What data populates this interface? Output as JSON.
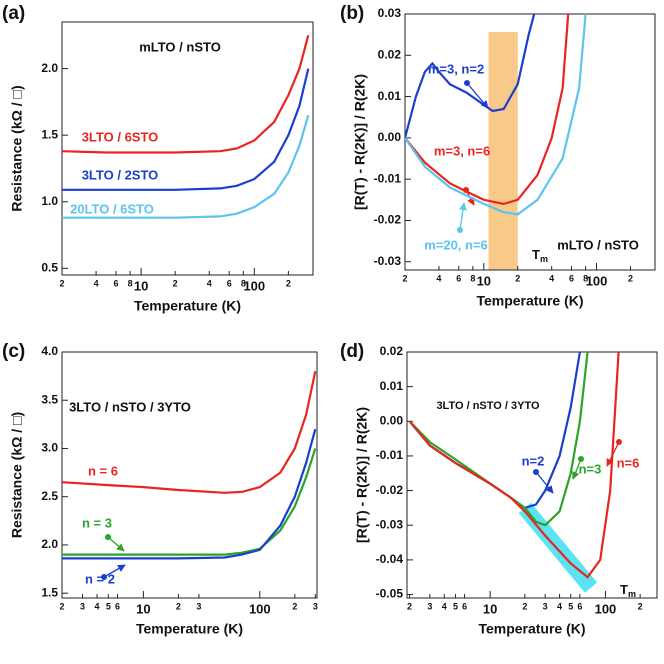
{
  "chart_data": [
    {
      "type": "line",
      "panel": "(a)",
      "annotation": "mLTO / nSTO",
      "x_label": "Temperature (K)",
      "y_label": "Resistance (kΩ / □)",
      "log_x": true,
      "xlim": [
        2,
        330
      ],
      "ylim": [
        0.45,
        2.35
      ],
      "xticks": [
        2,
        4,
        6,
        8,
        10,
        {
          "value": 20,
          "label": "2"
        },
        {
          "value": 40,
          "label": "4"
        },
        {
          "value": 60,
          "label": "6"
        },
        {
          "value": 80,
          "label": "8"
        },
        100,
        {
          "value": 200,
          "label": "2"
        }
      ],
      "yticks": [
        0.5,
        {
          "value": 1,
          "label": "1.0"
        },
        1.5,
        {
          "value": 2,
          "label": "2.0"
        }
      ],
      "series": [
        {
          "name": "3LTO / 6STO",
          "color": "#e8251f",
          "x": [
            2,
            5,
            10,
            20,
            50,
            70,
            100,
            150,
            200,
            250,
            300
          ],
          "values": [
            1.38,
            1.37,
            1.37,
            1.37,
            1.38,
            1.4,
            1.46,
            1.6,
            1.8,
            2.0,
            2.25
          ]
        },
        {
          "name": "3LTO / 2STO",
          "color": "#1a3fcf",
          "x": [
            2,
            5,
            10,
            20,
            50,
            70,
            100,
            150,
            200,
            250,
            300
          ],
          "values": [
            1.09,
            1.09,
            1.09,
            1.09,
            1.1,
            1.12,
            1.17,
            1.3,
            1.5,
            1.72,
            2.0
          ]
        },
        {
          "name": "20LTO / 6STO",
          "color": "#5bc4ef",
          "x": [
            2,
            5,
            10,
            20,
            50,
            70,
            100,
            150,
            200,
            250,
            300
          ],
          "values": [
            0.88,
            0.88,
            0.88,
            0.88,
            0.89,
            0.91,
            0.96,
            1.06,
            1.22,
            1.42,
            1.65
          ]
        }
      ]
    },
    {
      "type": "line",
      "panel": "(b)",
      "annotation": "mLTO / nSTO",
      "x_label": "Temperature (K)",
      "y_label": "[R(T) - R(2K)] / R(2K)",
      "log_x": true,
      "xlim": [
        2,
        330
      ],
      "ylim": [
        -0.032,
        0.03
      ],
      "xticks": [
        2,
        4,
        6,
        8,
        10,
        {
          "value": 20,
          "label": "2"
        },
        {
          "value": 40,
          "label": "4"
        },
        {
          "value": 60,
          "label": "6"
        },
        {
          "value": 80,
          "label": "8"
        },
        100,
        {
          "value": 200,
          "label": "2"
        }
      ],
      "yticks": [
        -0.03,
        -0.02,
        -0.01,
        {
          "value": 0,
          "label": "0.00"
        },
        0.01,
        0.02,
        0.03
      ],
      "band": {
        "x": [
          11,
          20
        ],
        "color": "#f9c98a",
        "label": "T",
        "label_sub": "m"
      },
      "series": [
        {
          "name": "m=3, n=2",
          "color": "#1a3fcf",
          "x": [
            2,
            2.5,
            3,
            3.5,
            4,
            5,
            7,
            10,
            12,
            15,
            20,
            25,
            28
          ],
          "values": [
            0,
            0.01,
            0.016,
            0.018,
            0.016,
            0.013,
            0.011,
            0.008,
            0.0065,
            0.007,
            0.013,
            0.025,
            0.03
          ]
        },
        {
          "name": "m=3, n=6",
          "color": "#e8251f",
          "x": [
            2,
            3,
            5,
            7,
            10,
            15,
            20,
            30,
            40,
            50,
            56
          ],
          "values": [
            0,
            -0.006,
            -0.011,
            -0.013,
            -0.015,
            -0.016,
            -0.015,
            -0.009,
            0.0,
            0.012,
            0.03
          ]
        },
        {
          "name": "m=20, n=6",
          "color": "#5bc4ef",
          "x": [
            2,
            3,
            5,
            10,
            15,
            20,
            30,
            50,
            70,
            80
          ],
          "values": [
            0,
            -0.007,
            -0.012,
            -0.016,
            -0.018,
            -0.0185,
            -0.015,
            -0.005,
            0.012,
            0.03
          ]
        }
      ]
    },
    {
      "type": "line",
      "panel": "(c)",
      "annotation": "3LTO / nSTO / 3YTO",
      "x_label": "Temperature (K)",
      "y_label": "Resistance (kΩ / □)",
      "log_x": true,
      "xlim": [
        2,
        310
      ],
      "ylim": [
        1.45,
        4.0
      ],
      "xticks": [
        2,
        3,
        4,
        5,
        6,
        10,
        {
          "value": 20,
          "label": "2"
        },
        {
          "value": 30,
          "label": "3"
        },
        100,
        {
          "value": 200,
          "label": "2"
        },
        {
          "value": 300,
          "label": "3"
        }
      ],
      "yticks": [
        1.5,
        {
          "value": 2,
          "label": "2.0"
        },
        2.5,
        {
          "value": 3,
          "label": "3.0"
        },
        3.5,
        {
          "value": 4,
          "label": "4.0"
        }
      ],
      "series": [
        {
          "name": "n = 6",
          "color": "#e8251f",
          "x": [
            2,
            5,
            10,
            20,
            50,
            70,
            100,
            150,
            200,
            250,
            300
          ],
          "values": [
            2.65,
            2.62,
            2.6,
            2.57,
            2.54,
            2.55,
            2.6,
            2.75,
            3.0,
            3.35,
            3.8
          ]
        },
        {
          "name": "n = 3",
          "color": "#2aa52a",
          "x": [
            2,
            5,
            10,
            20,
            50,
            70,
            100,
            150,
            200,
            250,
            300
          ],
          "values": [
            1.9,
            1.9,
            1.9,
            1.9,
            1.9,
            1.92,
            1.96,
            2.15,
            2.4,
            2.7,
            3.0
          ]
        },
        {
          "name": "n = 2",
          "color": "#1a3fcf",
          "x": [
            2,
            5,
            10,
            20,
            50,
            70,
            100,
            150,
            200,
            250,
            300
          ],
          "values": [
            1.86,
            1.86,
            1.86,
            1.86,
            1.87,
            1.9,
            1.95,
            2.2,
            2.5,
            2.85,
            3.2
          ]
        }
      ]
    },
    {
      "type": "line",
      "panel": "(d)",
      "annotation": "3LTO / nSTO / 3YTO",
      "x_label": "Temperature (K)",
      "y_label": "[R(T) - R(2K)] / R(2K)",
      "log_x": true,
      "xlim": [
        1.9,
        280
      ],
      "ylim": [
        -0.051,
        0.02
      ],
      "xticks": [
        2,
        3,
        4,
        5,
        6,
        10,
        {
          "value": 20,
          "label": "2"
        },
        {
          "value": 30,
          "label": "3"
        },
        {
          "value": 40,
          "label": "4"
        },
        {
          "value": 50,
          "label": "5"
        },
        {
          "value": 60,
          "label": "6"
        },
        100,
        {
          "value": 200,
          "label": "2"
        }
      ],
      "yticks": [
        -0.05,
        -0.04,
        -0.03,
        -0.02,
        -0.01,
        {
          "value": 0,
          "label": "0.00"
        },
        0.01,
        0.02
      ],
      "band": {
        "x": [
          20,
          75
        ],
        "y": [
          -0.025,
          -0.048
        ],
        "color": "#3ee0f0",
        "label": "T",
        "label_sub": "m"
      },
      "series": [
        {
          "name": "n=2",
          "color": "#1a3fcf",
          "x": [
            2,
            3,
            5,
            10,
            15,
            20,
            25,
            30,
            40,
            50,
            60
          ],
          "values": [
            0,
            -0.007,
            -0.012,
            -0.018,
            -0.022,
            -0.025,
            -0.024,
            -0.02,
            -0.01,
            0.004,
            0.02
          ]
        },
        {
          "name": "n=3",
          "color": "#2aa52a",
          "x": [
            2,
            3,
            5,
            10,
            15,
            20,
            25,
            30,
            40,
            50,
            60,
            70
          ],
          "values": [
            0,
            -0.006,
            -0.011,
            -0.018,
            -0.022,
            -0.025,
            -0.029,
            -0.03,
            -0.026,
            -0.015,
            0.0,
            0.02
          ]
        },
        {
          "name": "n=6",
          "color": "#e8251f",
          "x": [
            2,
            3,
            5,
            10,
            15,
            20,
            30,
            50,
            70,
            90,
            110,
            130
          ],
          "values": [
            0,
            -0.007,
            -0.012,
            -0.018,
            -0.022,
            -0.026,
            -0.033,
            -0.041,
            -0.045,
            -0.04,
            -0.02,
            0.02
          ]
        }
      ]
    }
  ]
}
